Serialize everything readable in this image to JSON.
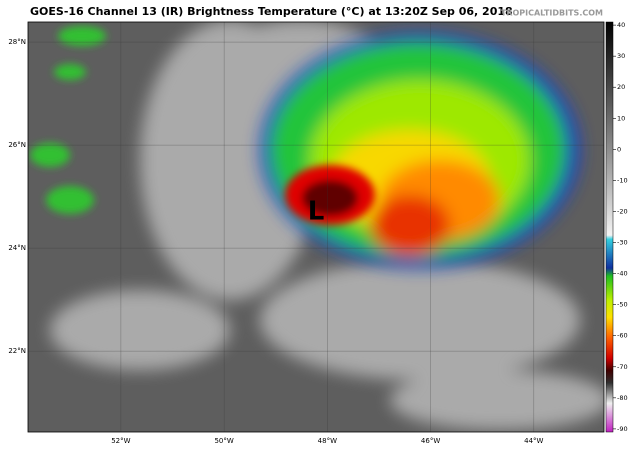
{
  "title": "GOES-16 Channel 13 (IR) Brightness Temperature (°C) at 13:20Z Sep 06, 2018",
  "watermark": "TROPICALTIDBITS.COM",
  "marker": "L",
  "latlim": [
    20.43,
    28.39
  ],
  "lat_ticks": [
    {
      "value": 28,
      "label": "28°N"
    },
    {
      "value": 26,
      "label": "26°N"
    },
    {
      "value": 24,
      "label": "24°N"
    },
    {
      "value": 22,
      "label": "22°N"
    }
  ],
  "lonlim": [
    -53.8,
    -42.64
  ],
  "lon_ticks": [
    {
      "value": -52,
      "label": "52°W"
    },
    {
      "value": -50,
      "label": "50°W"
    },
    {
      "value": -48,
      "label": "48°W"
    },
    {
      "value": -46,
      "label": "46°W"
    },
    {
      "value": -44,
      "label": "44°W"
    }
  ],
  "colorbar": {
    "clim": [
      -91,
      41
    ],
    "ticks": [
      40,
      30,
      20,
      10,
      0,
      -10,
      -20,
      -30,
      -40,
      -50,
      -60,
      -70,
      -80,
      -90
    ]
  }
}
